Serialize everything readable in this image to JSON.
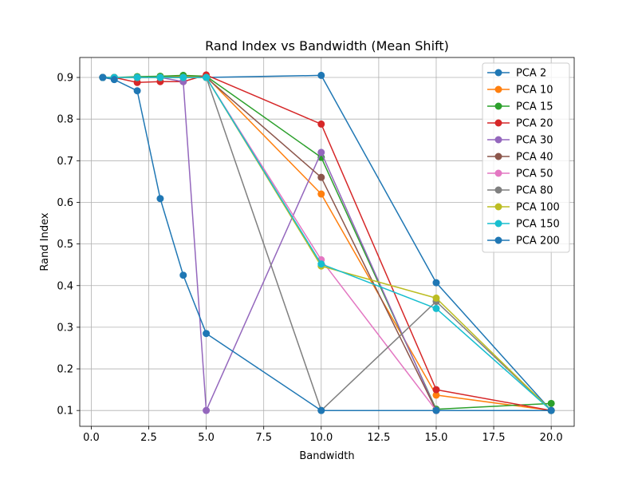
{
  "chart_data": {
    "type": "line",
    "title": "Rand Index vs Bandwidth (Mean Shift)",
    "xlabel": "Bandwidth",
    "ylabel": "Rand Index",
    "xlim": [
      -0.5,
      21
    ],
    "ylim": [
      0.062,
      0.948
    ],
    "xticks": [
      0.0,
      2.5,
      5.0,
      7.5,
      10.0,
      12.5,
      15.0,
      17.5,
      20.0
    ],
    "xtick_labels": [
      "0.0",
      "2.5",
      "5.0",
      "7.5",
      "10.0",
      "12.5",
      "15.0",
      "17.5",
      "20.0"
    ],
    "yticks": [
      0.1,
      0.2,
      0.3,
      0.4,
      0.5,
      0.6,
      0.7,
      0.8,
      0.9
    ],
    "ytick_labels": [
      "0.1",
      "0.2",
      "0.3",
      "0.4",
      "0.5",
      "0.6",
      "0.7",
      "0.8",
      "0.9"
    ],
    "grid": true,
    "legend_position": "top-right",
    "marker": "circle",
    "series": [
      {
        "name": "PCA 2",
        "color": "#1f77b4",
        "x": [
          0.5,
          1,
          2,
          3,
          4,
          5,
          10,
          15,
          20
        ],
        "y": [
          0.9,
          0.9,
          0.9,
          0.901,
          0.901,
          0.9,
          0.905,
          0.407,
          0.1
        ]
      },
      {
        "name": "PCA 10",
        "color": "#ff7f0e",
        "x": [
          0.5,
          1,
          2,
          3,
          4,
          5,
          10,
          15,
          20
        ],
        "y": [
          0.9,
          0.9,
          0.901,
          0.902,
          0.903,
          0.902,
          0.62,
          0.137,
          0.1
        ]
      },
      {
        "name": "PCA 15",
        "color": "#2ca02c",
        "x": [
          0.5,
          1,
          2,
          3,
          4,
          5,
          10,
          15,
          20
        ],
        "y": [
          0.9,
          0.9,
          0.902,
          0.903,
          0.905,
          0.903,
          0.708,
          0.103,
          0.117
        ]
      },
      {
        "name": "PCA 20",
        "color": "#d62728",
        "x": [
          0.5,
          1,
          2,
          3,
          4,
          5,
          10,
          15,
          20
        ],
        "y": [
          0.9,
          0.9,
          0.888,
          0.89,
          0.89,
          0.906,
          0.788,
          0.15,
          0.1
        ]
      },
      {
        "name": "PCA 30",
        "color": "#9467bd",
        "x": [
          0.5,
          1,
          2,
          3,
          4,
          5,
          10,
          15,
          20
        ],
        "y": [
          0.9,
          0.9,
          0.9,
          0.9,
          0.89,
          0.1,
          0.72,
          0.1,
          0.1
        ]
      },
      {
        "name": "PCA 40",
        "color": "#8c564b",
        "x": [
          0.5,
          1,
          2,
          3,
          4,
          5,
          10,
          15,
          20
        ],
        "y": [
          0.9,
          0.9,
          0.9,
          0.9,
          0.9,
          0.9,
          0.66,
          0.1,
          0.1
        ]
      },
      {
        "name": "PCA 50",
        "color": "#e377c2",
        "x": [
          0.5,
          1,
          2,
          3,
          4,
          5,
          10,
          15,
          20
        ],
        "y": [
          0.9,
          0.9,
          0.9,
          0.9,
          0.9,
          0.9,
          0.462,
          0.1,
          0.1
        ]
      },
      {
        "name": "PCA 80",
        "color": "#7f7f7f",
        "x": [
          0.5,
          1,
          2,
          3,
          4,
          5,
          10,
          15,
          20
        ],
        "y": [
          0.9,
          0.9,
          0.9,
          0.9,
          0.9,
          0.9,
          0.1,
          0.362,
          0.1
        ]
      },
      {
        "name": "PCA 100",
        "color": "#bcbd22",
        "x": [
          0.5,
          1,
          2,
          3,
          4,
          5,
          10,
          15,
          20
        ],
        "y": [
          0.9,
          0.9,
          0.9,
          0.9,
          0.9,
          0.9,
          0.447,
          0.37,
          0.1
        ]
      },
      {
        "name": "PCA 150",
        "color": "#17becf",
        "x": [
          0.5,
          1,
          2,
          3,
          4,
          5,
          10,
          15,
          20
        ],
        "y": [
          0.9,
          0.9,
          0.9,
          0.9,
          0.9,
          0.9,
          0.452,
          0.345,
          0.1
        ]
      },
      {
        "name": "PCA 200",
        "color": "#1f77b4",
        "x": [
          0.5,
          1,
          2,
          3,
          4,
          5,
          10,
          15,
          20
        ],
        "y": [
          0.9,
          0.895,
          0.868,
          0.609,
          0.425,
          0.285,
          0.1,
          0.1,
          0.1
        ]
      }
    ]
  }
}
